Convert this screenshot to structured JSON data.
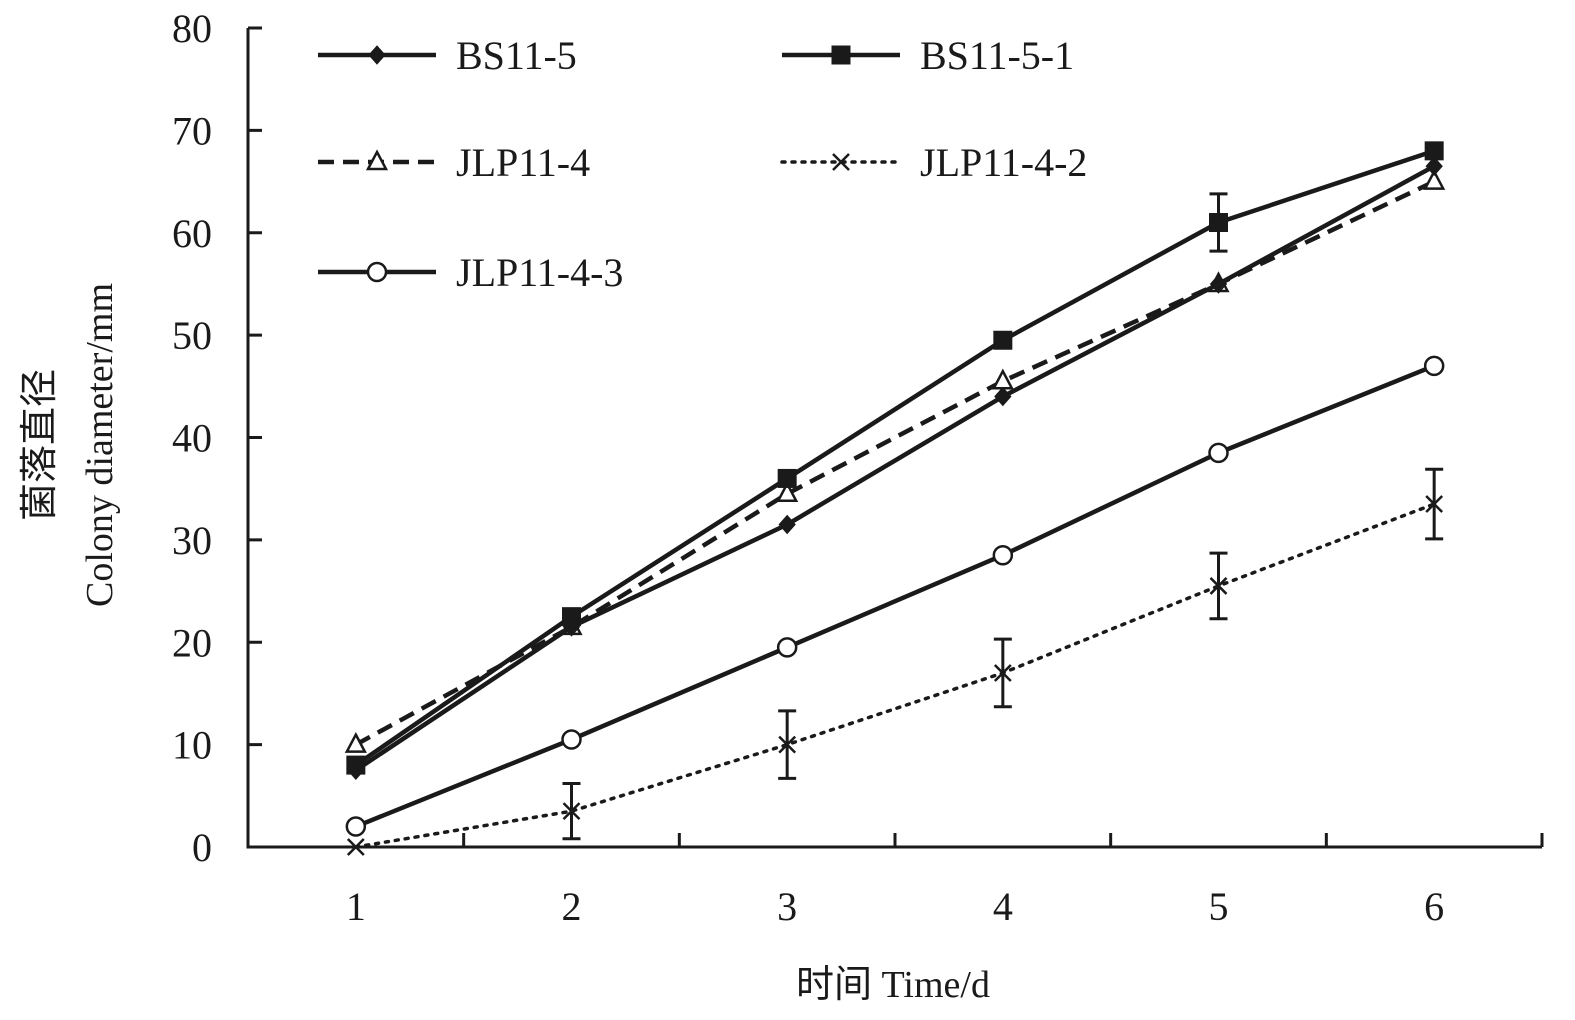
{
  "chart_data": {
    "type": "line",
    "xlabel": "时间 Time/d",
    "ylabel_cn": "菌落直径",
    "ylabel_en": "Colony diameter/mm",
    "x": [
      1,
      2,
      3,
      4,
      5,
      6
    ],
    "x_tick_labels": [
      "1",
      "2",
      "3",
      "4",
      "5",
      "6"
    ],
    "xlim": [
      0.5,
      6.5
    ],
    "ylim": [
      0,
      80
    ],
    "y_ticks": [
      0,
      10,
      20,
      30,
      40,
      50,
      60,
      70,
      80
    ],
    "y_tick_labels": [
      "0",
      "10",
      "20",
      "30",
      "40",
      "50",
      "60",
      "70",
      "80"
    ],
    "grid": false,
    "legend_position": "top-left",
    "series": [
      {
        "name": "BS11-5",
        "values": [
          7.5,
          21.5,
          31.5,
          44,
          55,
          66.5
        ],
        "errors": [
          0,
          0,
          0,
          0,
          0,
          0
        ],
        "line": "solid",
        "marker": "diamond-filled",
        "color": "#1a1a1a"
      },
      {
        "name": "BS11-5-1",
        "values": [
          8,
          22.5,
          36,
          49.5,
          61,
          68
        ],
        "errors": [
          0,
          0,
          0,
          0,
          2.8,
          0
        ],
        "line": "solid",
        "marker": "square-filled",
        "color": "#1a1a1a"
      },
      {
        "name": "JLP11-4",
        "values": [
          10,
          21.5,
          34.5,
          45.5,
          55,
          65
        ],
        "errors": [
          0,
          0,
          0,
          0,
          0,
          0
        ],
        "line": "dashed",
        "marker": "triangle-open",
        "color": "#1a1a1a"
      },
      {
        "name": "JLP11-4-2",
        "values": [
          0,
          3.5,
          10,
          17,
          25.5,
          33.5
        ],
        "errors": [
          0,
          2.7,
          3.3,
          3.3,
          3.2,
          3.4
        ],
        "line": "dotted",
        "marker": "cross",
        "color": "#1a1a1a"
      },
      {
        "name": "JLP11-4-3",
        "values": [
          2,
          10.5,
          19.5,
          28.5,
          38.5,
          47
        ],
        "errors": [
          0,
          0,
          0,
          0,
          0,
          0
        ],
        "line": "solid",
        "marker": "circle-open",
        "color": "#1a1a1a"
      }
    ]
  }
}
